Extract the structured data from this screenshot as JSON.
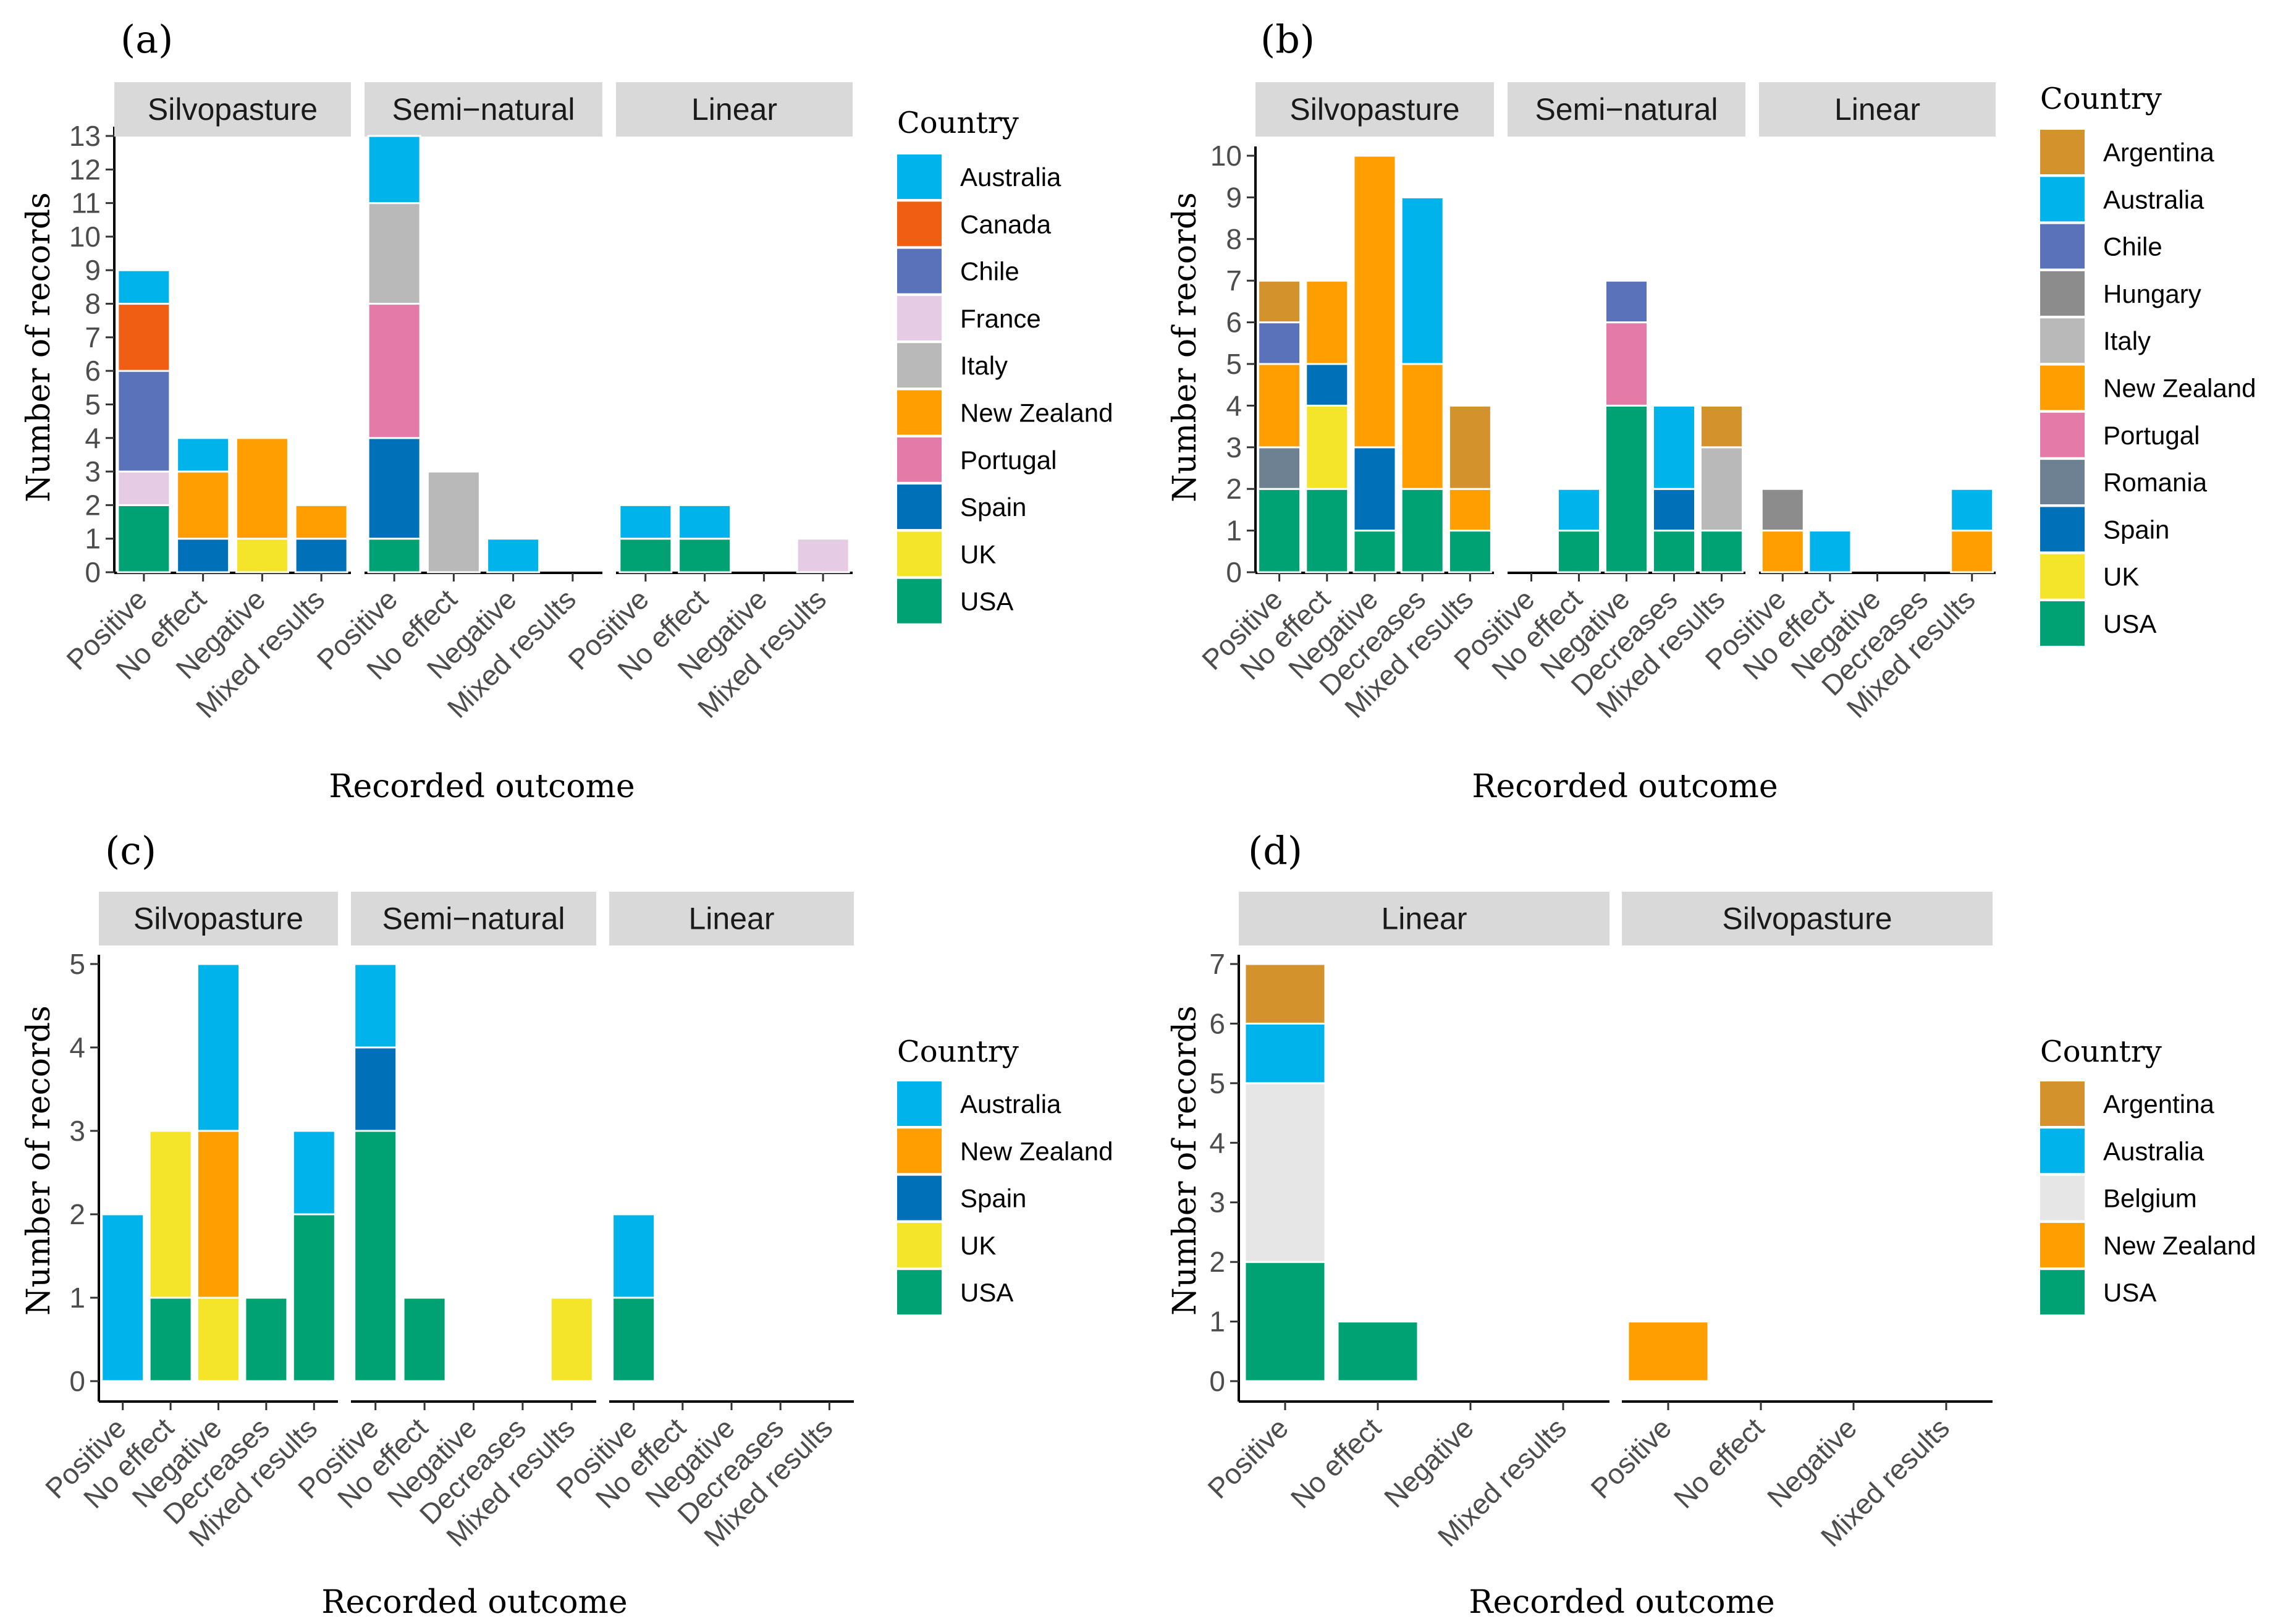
{
  "colors": {
    "Argentina": "#D4922D",
    "Australia": "#00B3EA",
    "Belgium": "#E6E6E6",
    "Canada": "#F05E14",
    "Chile": "#5A72BA",
    "France": "#E6CBE5",
    "Hungary": "#8C8C8C",
    "Italy": "#B9B9B9",
    "New Zealand": "#FF9E00",
    "Portugal": "#E47AA8",
    "Romania": "#6D8192",
    "Spain": "#0070B8",
    "UK": "#F4E42A",
    "USA": "#00A273"
  },
  "chart_data": [
    {
      "id": "a",
      "label": "(a)",
      "type": "bar",
      "stacked": true,
      "ylabel": "Number of records",
      "xlabel": "Recorded outcome",
      "ylim": [
        0,
        13
      ],
      "yticks": [
        0,
        1,
        2,
        3,
        4,
        5,
        6,
        7,
        8,
        9,
        10,
        11,
        12,
        13
      ],
      "legend_title": "Country",
      "legend": [
        "Australia",
        "Canada",
        "Chile",
        "France",
        "Italy",
        "New Zealand",
        "Portugal",
        "Spain",
        "UK",
        "USA"
      ],
      "facets": [
        {
          "name": "Silvopasture",
          "categories": [
            "Positive",
            "No effect",
            "Negative",
            "Mixed results"
          ],
          "bars": [
            [
              [
                "USA",
                2
              ],
              [
                "France",
                1
              ],
              [
                "Chile",
                3
              ],
              [
                "Canada",
                2
              ],
              [
                "Australia",
                1
              ]
            ],
            [
              [
                "Spain",
                1
              ],
              [
                "New Zealand",
                2
              ],
              [
                "Australia",
                1
              ]
            ],
            [
              [
                "UK",
                1
              ],
              [
                "New Zealand",
                3
              ]
            ],
            [
              [
                "Spain",
                1
              ],
              [
                "New Zealand",
                1
              ]
            ]
          ]
        },
        {
          "name": "Semi−natural",
          "categories": [
            "Positive",
            "No effect",
            "Negative",
            "Mixed results"
          ],
          "bars": [
            [
              [
                "USA",
                1
              ],
              [
                "Spain",
                3
              ],
              [
                "Portugal",
                4
              ],
              [
                "Italy",
                3
              ],
              [
                "Australia",
                2
              ]
            ],
            [
              [
                "Italy",
                3
              ]
            ],
            [
              [
                "Australia",
                1
              ]
            ],
            []
          ]
        },
        {
          "name": "Linear",
          "categories": [
            "Positive",
            "No effect",
            "Negative",
            "Mixed results"
          ],
          "bars": [
            [
              [
                "USA",
                1
              ],
              [
                "Australia",
                1
              ]
            ],
            [
              [
                "USA",
                1
              ],
              [
                "Australia",
                1
              ]
            ],
            [],
            [
              [
                "France",
                1
              ]
            ]
          ]
        }
      ]
    },
    {
      "id": "b",
      "label": "(b)",
      "type": "bar",
      "stacked": true,
      "ylabel": "Number of records",
      "xlabel": "Recorded outcome",
      "ylim": [
        0,
        10
      ],
      "yticks": [
        0,
        1,
        2,
        3,
        4,
        5,
        6,
        7,
        8,
        9,
        10
      ],
      "legend_title": "Country",
      "legend": [
        "Argentina",
        "Australia",
        "Chile",
        "Hungary",
        "Italy",
        "New Zealand",
        "Portugal",
        "Romania",
        "Spain",
        "UK",
        "USA"
      ],
      "facets": [
        {
          "name": "Silvopasture",
          "categories": [
            "Positive",
            "No effect",
            "Negative",
            "Decreases",
            "Mixed results"
          ],
          "bars": [
            [
              [
                "USA",
                2
              ],
              [
                "Romania",
                1
              ],
              [
                "New Zealand",
                2
              ],
              [
                "Chile",
                1
              ],
              [
                "Argentina",
                1
              ]
            ],
            [
              [
                "USA",
                2
              ],
              [
                "UK",
                2
              ],
              [
                "Spain",
                1
              ],
              [
                "New Zealand",
                2
              ]
            ],
            [
              [
                "USA",
                1
              ],
              [
                "Spain",
                2
              ],
              [
                "New Zealand",
                7
              ]
            ],
            [
              [
                "USA",
                2
              ],
              [
                "New Zealand",
                3
              ],
              [
                "Australia",
                4
              ]
            ],
            [
              [
                "USA",
                1
              ],
              [
                "New Zealand",
                1
              ],
              [
                "Argentina",
                2
              ]
            ]
          ]
        },
        {
          "name": "Semi−natural",
          "categories": [
            "Positive",
            "No effect",
            "Negative",
            "Decreases",
            "Mixed results"
          ],
          "bars": [
            [],
            [
              [
                "USA",
                1
              ],
              [
                "Australia",
                1
              ]
            ],
            [
              [
                "USA",
                4
              ],
              [
                "Portugal",
                2
              ],
              [
                "Chile",
                1
              ]
            ],
            [
              [
                "USA",
                1
              ],
              [
                "Spain",
                1
              ],
              [
                "Australia",
                2
              ]
            ],
            [
              [
                "USA",
                1
              ],
              [
                "Italy",
                2
              ],
              [
                "Argentina",
                1
              ]
            ]
          ]
        },
        {
          "name": "Linear",
          "categories": [
            "Positive",
            "No effect",
            "Negative",
            "Decreases",
            "Mixed results"
          ],
          "bars": [
            [
              [
                "New Zealand",
                1
              ],
              [
                "Hungary",
                1
              ]
            ],
            [
              [
                "Australia",
                1
              ]
            ],
            [],
            [],
            [
              [
                "New Zealand",
                1
              ],
              [
                "Australia",
                1
              ]
            ]
          ]
        }
      ]
    },
    {
      "id": "c",
      "label": "(c)",
      "type": "bar",
      "stacked": true,
      "ylabel": "Number of records",
      "xlabel": "Recorded outcome",
      "ylim": [
        0,
        5
      ],
      "yticks": [
        0,
        1,
        2,
        3,
        4,
        5
      ],
      "legend_title": "Country",
      "legend": [
        "Australia",
        "New Zealand",
        "Spain",
        "UK",
        "USA"
      ],
      "facets": [
        {
          "name": "Silvopasture",
          "categories": [
            "Positive",
            "No effect",
            "Negative",
            "Decreases",
            "Mixed results"
          ],
          "bars": [
            [
              [
                "Australia",
                2
              ]
            ],
            [
              [
                "USA",
                1
              ],
              [
                "UK",
                2
              ]
            ],
            [
              [
                "UK",
                1
              ],
              [
                "New Zealand",
                2
              ],
              [
                "Australia",
                2
              ]
            ],
            [
              [
                "USA",
                1
              ]
            ],
            [
              [
                "USA",
                2
              ],
              [
                "Australia",
                1
              ]
            ]
          ]
        },
        {
          "name": "Semi−natural",
          "categories": [
            "Positive",
            "No effect",
            "Negative",
            "Decreases",
            "Mixed results"
          ],
          "bars": [
            [
              [
                "USA",
                3
              ],
              [
                "Spain",
                1
              ],
              [
                "Australia",
                1
              ]
            ],
            [
              [
                "USA",
                1
              ]
            ],
            [],
            [],
            [
              [
                "UK",
                1
              ]
            ]
          ]
        },
        {
          "name": "Linear",
          "categories": [
            "Positive",
            "No effect",
            "Negative",
            "Decreases",
            "Mixed results"
          ],
          "bars": [
            [
              [
                "USA",
                1
              ],
              [
                "Australia",
                1
              ]
            ],
            [],
            [],
            [],
            []
          ]
        }
      ]
    },
    {
      "id": "d",
      "label": "(d)",
      "type": "bar",
      "stacked": true,
      "ylabel": "Number of records",
      "xlabel": "Recorded outcome",
      "ylim": [
        0,
        7
      ],
      "yticks": [
        0,
        1,
        2,
        3,
        4,
        5,
        6,
        7
      ],
      "legend_title": "Country",
      "legend": [
        "Argentina",
        "Australia",
        "Belgium",
        "New Zealand",
        "USA"
      ],
      "facets": [
        {
          "name": "Linear",
          "categories": [
            "Positive",
            "No effect",
            "Negative",
            "Mixed results"
          ],
          "bars": [
            [
              [
                "USA",
                2
              ],
              [
                "Belgium",
                3
              ],
              [
                "Australia",
                1
              ],
              [
                "Argentina",
                1
              ]
            ],
            [
              [
                "USA",
                1
              ]
            ],
            [],
            []
          ]
        },
        {
          "name": "Silvopasture",
          "categories": [
            "Positive",
            "No effect",
            "Negative",
            "Mixed results"
          ],
          "bars": [
            [
              [
                "New Zealand",
                1
              ]
            ],
            [],
            [],
            []
          ]
        }
      ]
    }
  ]
}
